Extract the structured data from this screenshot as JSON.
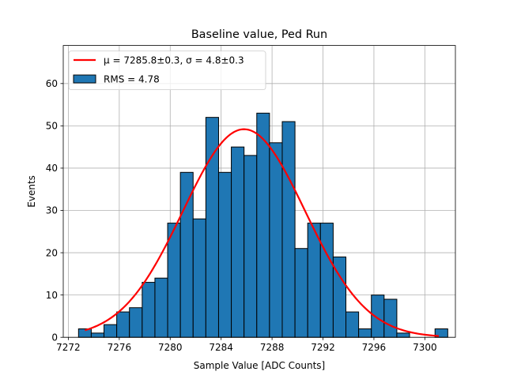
{
  "chart_data": {
    "type": "bar",
    "title": "Baseline value, Ped Run",
    "xlabel": "Sample Value [ADC Counts]",
    "ylabel": "Events",
    "xlim": [
      7271.6,
      7302.4
    ],
    "ylim": [
      0,
      69
    ],
    "xticks": [
      7272,
      7276,
      7280,
      7284,
      7288,
      7292,
      7296,
      7300
    ],
    "yticks": [
      0,
      10,
      20,
      30,
      40,
      50,
      60
    ],
    "grid": true,
    "histogram": {
      "name": "RMS = 4.78",
      "color": "#1f77b4",
      "bin_start": 7272.8,
      "bin_width": 1.0,
      "counts": [
        2,
        1,
        3,
        6,
        7,
        13,
        14,
        27,
        39,
        28,
        52,
        39,
        45,
        43,
        53,
        46,
        51,
        21,
        27,
        27,
        19,
        6,
        2,
        10,
        9,
        1,
        0,
        0,
        2
      ]
    },
    "fit": {
      "name": "μ = 7285.8±0.3, σ = 4.8±0.3",
      "color": "#ff0000",
      "type": "gaussian",
      "amplitude": 49.2,
      "mean": 7285.8,
      "sigma": 4.8,
      "x_range": [
        7273.3,
        7301.1
      ]
    },
    "legend": {
      "location": "top-left",
      "entries": [
        {
          "label": "μ = 7285.8±0.3, σ = 4.8±0.3",
          "kind": "line",
          "color": "#ff0000"
        },
        {
          "label": "RMS = 4.78",
          "kind": "patch",
          "color": "#1f77b4"
        }
      ]
    }
  }
}
